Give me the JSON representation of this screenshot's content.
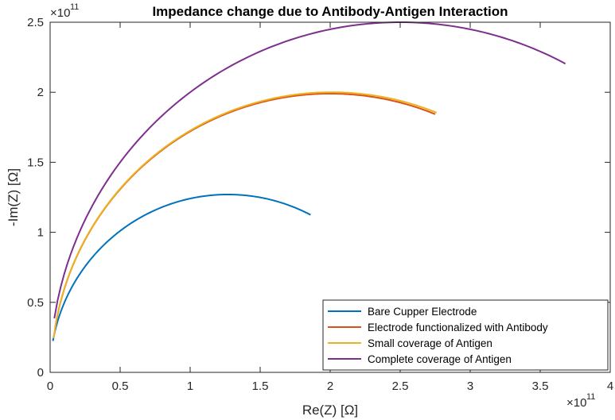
{
  "chart_data": {
    "type": "line",
    "title": "Impedance change due to Antibody-Antigen Interaction",
    "xlabel": "Re(Z) [Ω]",
    "ylabel": "-Im(Z) [Ω]",
    "x_exponent": {
      "base": "×10",
      "power": "11"
    },
    "y_exponent": {
      "base": "×10",
      "power": "11"
    },
    "xlim": [
      0,
      4
    ],
    "ylim": [
      0,
      2.5
    ],
    "xticks": [
      0,
      0.5,
      1,
      1.5,
      2,
      2.5,
      3,
      3.5,
      4
    ],
    "xtick_labels": [
      "0",
      "0.5",
      "1",
      "1.5",
      "2",
      "2.5",
      "3",
      "3.5",
      "4"
    ],
    "yticks": [
      0,
      0.5,
      1,
      1.5,
      2,
      2.5
    ],
    "ytick_labels": [
      "0",
      "0.5",
      "1",
      "1.5",
      "2",
      "2.5"
    ],
    "grid": false,
    "legend_position": "bottom-right",
    "series": [
      {
        "name": "Bare Cupper Electrode",
        "color": "#0072BD",
        "center": 1.27,
        "radius": 1.27,
        "x_start": 0.02,
        "x_end": 1.86
      },
      {
        "name": "Electrode functionalized with Antibody",
        "color": "#D95319",
        "center": 2.0,
        "radius": 1.99,
        "x_start": 0.035,
        "x_end": 2.75
      },
      {
        "name": "Small coverage of Antigen",
        "color": "#EDB120",
        "center": 2.01,
        "radius": 2.0,
        "x_start": 0.025,
        "x_end": 2.76
      },
      {
        "name": "Complete coverage of Antigen",
        "color": "#7E2F8E",
        "center": 2.5,
        "radius": 2.5,
        "x_start": 0.03,
        "x_end": 3.68
      }
    ]
  }
}
